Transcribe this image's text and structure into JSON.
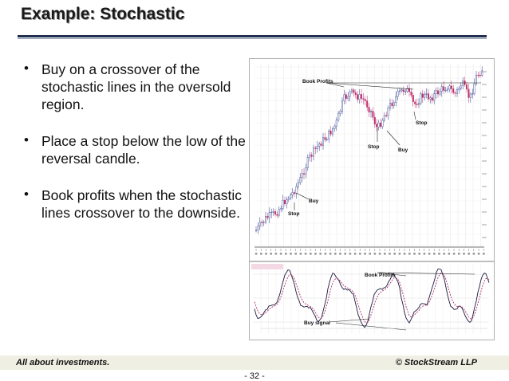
{
  "slide": {
    "title": "Example: Stochastic",
    "bullets": [
      "Buy on a crossover of the stochastic lines in the oversold region.",
      "Place a stop below the low of the reversal candle.",
      "Book profits when the stochastic lines crossover to the downside."
    ]
  },
  "chart": {
    "annotations": {
      "book_profits_top": "Book Profits",
      "stop_mid": "Stop",
      "buy_mid": "Buy",
      "stop_right": "Stop",
      "buy_left": "Buy",
      "stop_left": "Stop",
      "book_profits_lower": "Book Profits",
      "buy_signal": "Buy signal"
    }
  },
  "footer": {
    "left": "All about investments.",
    "right": "© StockStream LLP",
    "page": "- 32 -"
  }
}
